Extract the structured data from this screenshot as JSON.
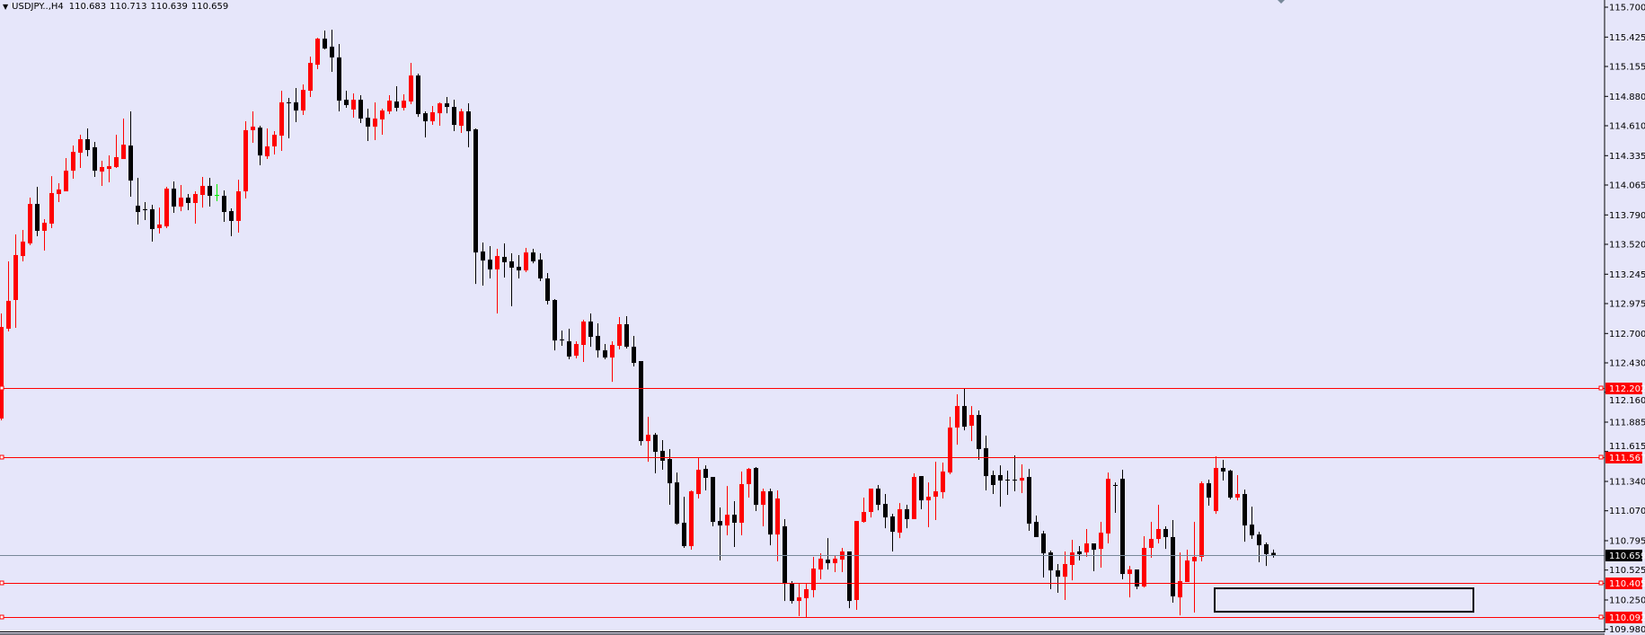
{
  "header": {
    "symbol": "USDJPY..,H4",
    "open": "110.683",
    "high": "110.713",
    "low": "110.639",
    "close": "110.659"
  },
  "colors": {
    "background": "#e6e6fa",
    "bull_candle": "#ff0000",
    "bear_candle": "#000000",
    "doji_special": "#00ee00",
    "level_line": "#ff0000",
    "current_price_line": "#778899",
    "axis": "#000000"
  },
  "chart_data": {
    "type": "candlestick",
    "symbol": "USDJPY",
    "timeframe": "H4",
    "ylim": [
      109.98,
      115.7
    ],
    "grid": false,
    "y_ticks": [
      "115.700",
      "115.425",
      "115.155",
      "114.880",
      "114.610",
      "114.335",
      "114.065",
      "113.790",
      "113.520",
      "113.245",
      "112.975",
      "112.700",
      "112.430",
      "112.160",
      "111.885",
      "111.615",
      "111.340",
      "111.070",
      "110.795",
      "110.525",
      "110.250",
      "109.980"
    ],
    "horizontal_levels": [
      {
        "price": "112.202"
      },
      {
        "price": "111.567"
      },
      {
        "price": "110.405"
      },
      {
        "price": "110.092"
      }
    ],
    "current_price": "110.659",
    "rectangle": {
      "price_top": 110.357,
      "price_bottom": 110.142
    },
    "candle_fields": [
      "open",
      "high",
      "low",
      "close"
    ],
    "candles": [
      [
        111.918,
        112.884,
        111.901,
        112.76
      ],
      [
        112.744,
        113.363,
        112.719,
        113.0
      ],
      [
        113.008,
        113.611,
        112.752,
        113.421
      ],
      [
        113.412,
        113.652,
        113.363,
        113.545
      ],
      [
        113.528,
        113.949,
        113.512,
        113.891
      ],
      [
        113.891,
        114.048,
        113.594,
        113.644
      ],
      [
        113.644,
        113.751,
        113.462,
        113.718
      ],
      [
        113.71,
        114.147,
        113.669,
        113.991
      ],
      [
        113.982,
        114.081,
        113.908,
        114.024
      ],
      [
        114.007,
        114.313,
        114.007,
        114.197
      ],
      [
        114.197,
        114.428,
        114.123,
        114.37
      ],
      [
        114.362,
        114.527,
        114.222,
        114.486
      ],
      [
        114.486,
        114.585,
        114.329,
        114.387
      ],
      [
        114.412,
        114.461,
        114.139,
        114.197
      ],
      [
        114.189,
        114.288,
        114.057,
        114.23
      ],
      [
        114.213,
        114.337,
        114.09,
        114.238
      ],
      [
        114.23,
        114.527,
        114.222,
        114.321
      ],
      [
        114.304,
        114.676,
        114.304,
        114.436
      ],
      [
        114.428,
        114.742,
        113.958,
        114.106
      ],
      [
        113.875,
        114.131,
        113.702,
        113.817
      ],
      [
        113.842,
        113.908,
        113.743,
        113.842
      ],
      [
        113.842,
        113.883,
        113.545,
        113.66
      ],
      [
        113.669,
        113.858,
        113.619,
        113.702
      ],
      [
        113.685,
        114.048,
        113.669,
        114.032
      ],
      [
        114.032,
        114.098,
        113.809,
        113.867
      ],
      [
        113.867,
        114.065,
        113.825,
        113.949
      ],
      [
        113.949,
        113.982,
        113.834,
        113.9
      ],
      [
        113.9,
        114.007,
        113.71,
        113.982
      ],
      [
        113.974,
        114.139,
        113.858,
        114.057
      ],
      [
        114.057,
        114.131,
        113.867,
        113.966
      ],
      [
        113.974,
        114.073,
        113.916,
        113.974
      ],
      [
        113.966,
        114.015,
        113.726,
        113.817
      ],
      [
        113.825,
        113.85,
        113.594,
        113.735
      ],
      [
        113.735,
        114.114,
        113.627,
        114.007
      ],
      [
        114.007,
        114.651,
        113.941,
        114.569
      ],
      [
        114.569,
        114.742,
        114.453,
        114.602
      ],
      [
        114.593,
        114.61,
        114.247,
        114.337
      ],
      [
        114.329,
        114.585,
        114.304,
        114.42
      ],
      [
        114.42,
        114.56,
        114.346,
        114.527
      ],
      [
        114.519,
        114.932,
        114.379,
        114.825
      ],
      [
        114.825,
        114.866,
        114.494,
        114.825
      ],
      [
        114.825,
        114.957,
        114.643,
        114.75
      ],
      [
        114.75,
        114.99,
        114.709,
        114.94
      ],
      [
        114.932,
        115.246,
        114.874,
        115.188
      ],
      [
        115.171,
        115.419,
        115.13,
        115.411
      ],
      [
        115.411,
        115.485,
        115.312,
        115.32
      ],
      [
        115.337,
        115.493,
        115.105,
        115.238
      ],
      [
        115.238,
        115.361,
        114.742,
        114.841
      ],
      [
        114.849,
        114.932,
        114.775,
        114.8
      ],
      [
        114.759,
        114.907,
        114.684,
        114.849
      ],
      [
        114.849,
        114.891,
        114.635,
        114.676
      ],
      [
        114.684,
        114.767,
        114.47,
        114.602
      ],
      [
        114.602,
        114.825,
        114.478,
        114.676
      ],
      [
        114.668,
        114.767,
        114.527,
        114.75
      ],
      [
        114.742,
        114.891,
        114.717,
        114.841
      ],
      [
        114.833,
        114.973,
        114.742,
        114.775
      ],
      [
        114.775,
        114.899,
        114.75,
        114.841
      ],
      [
        114.833,
        115.188,
        114.808,
        115.072
      ],
      [
        115.072,
        115.089,
        114.692,
        114.717
      ],
      [
        114.725,
        114.742,
        114.503,
        114.651
      ],
      [
        114.651,
        114.792,
        114.618,
        114.734
      ],
      [
        114.725,
        114.825,
        114.61,
        114.816
      ],
      [
        114.816,
        114.874,
        114.725,
        114.783
      ],
      [
        114.783,
        114.849,
        114.56,
        114.618
      ],
      [
        114.61,
        114.767,
        114.544,
        114.742
      ],
      [
        114.742,
        114.816,
        114.412,
        114.56
      ],
      [
        114.577,
        114.585,
        113.156,
        113.445
      ],
      [
        113.454,
        113.536,
        113.14,
        113.371
      ],
      [
        113.379,
        113.503,
        113.206,
        113.289
      ],
      [
        113.289,
        113.479,
        112.884,
        113.412
      ],
      [
        113.404,
        113.528,
        113.214,
        113.355
      ],
      [
        113.363,
        113.437,
        112.95,
        113.305
      ],
      [
        113.313,
        113.421,
        113.206,
        113.28
      ],
      [
        113.28,
        113.487,
        113.264,
        113.445
      ],
      [
        113.445,
        113.479,
        113.346,
        113.363
      ],
      [
        113.379,
        113.437,
        113.181,
        113.206
      ],
      [
        113.206,
        113.256,
        112.967,
        113.0
      ],
      [
        113.008,
        113.016,
        112.545,
        112.636
      ],
      [
        112.645,
        112.727,
        112.587,
        112.645
      ],
      [
        112.628,
        112.744,
        112.463,
        112.488
      ],
      [
        112.496,
        112.628,
        112.471,
        112.603
      ],
      [
        112.595,
        112.826,
        112.438,
        112.81
      ],
      [
        112.81,
        112.884,
        112.578,
        112.669
      ],
      [
        112.678,
        112.793,
        112.479,
        112.545
      ],
      [
        112.545,
        112.603,
        112.463,
        112.479
      ],
      [
        112.479,
        112.628,
        112.256,
        112.595
      ],
      [
        112.587,
        112.851,
        112.554,
        112.785
      ],
      [
        112.785,
        112.859,
        112.562,
        112.578
      ],
      [
        112.578,
        112.678,
        112.397,
        112.43
      ],
      [
        112.446,
        112.446,
        111.67,
        111.711
      ],
      [
        111.711,
        111.934,
        111.521,
        111.769
      ],
      [
        111.769,
        111.786,
        111.414,
        111.612
      ],
      [
        111.621,
        111.72,
        111.447,
        111.53
      ],
      [
        111.546,
        111.637,
        111.125,
        111.323
      ],
      [
        111.331,
        111.422,
        110.943,
        110.952
      ],
      [
        110.96,
        111.199,
        110.729,
        110.745
      ],
      [
        110.745,
        111.257,
        110.712,
        111.249
      ],
      [
        111.224,
        111.563,
        111.183,
        111.447
      ],
      [
        111.455,
        111.488,
        111.257,
        111.373
      ],
      [
        111.381,
        111.381,
        110.927,
        110.968
      ],
      [
        110.976,
        111.1,
        110.613,
        110.935
      ],
      [
        110.935,
        111.298,
        110.844,
        111.034
      ],
      [
        111.034,
        111.158,
        110.737,
        110.96
      ],
      [
        110.96,
        111.431,
        110.844,
        111.315
      ],
      [
        111.315,
        111.464,
        111.191,
        111.455
      ],
      [
        111.464,
        111.472,
        111.067,
        111.125
      ],
      [
        111.125,
        111.274,
        110.927,
        111.249
      ],
      [
        111.249,
        111.274,
        110.753,
        110.852
      ],
      [
        110.852,
        111.257,
        110.605,
        111.183
      ],
      [
        110.927,
        110.993,
        110.241,
        110.398
      ],
      [
        110.407,
        110.423,
        110.217,
        110.241
      ],
      [
        110.241,
        110.398,
        110.101,
        110.274
      ],
      [
        110.266,
        110.398,
        110.093,
        110.349
      ],
      [
        110.341,
        110.646,
        110.274,
        110.539
      ],
      [
        110.53,
        110.679,
        110.44,
        110.63
      ],
      [
        110.621,
        110.819,
        110.53,
        110.588
      ],
      [
        110.588,
        110.663,
        110.506,
        110.63
      ],
      [
        110.621,
        110.729,
        110.506,
        110.696
      ],
      [
        110.696,
        110.696,
        110.175,
        110.241
      ],
      [
        110.25,
        110.976,
        110.159,
        110.976
      ],
      [
        110.968,
        111.191,
        110.96,
        111.059
      ],
      [
        111.059,
        111.274,
        111.009,
        111.274
      ],
      [
        111.274,
        111.307,
        111.075,
        111.125
      ],
      [
        111.133,
        111.224,
        110.91,
        111.009
      ],
      [
        111.018,
        111.042,
        110.696,
        110.877
      ],
      [
        110.869,
        111.141,
        110.819,
        111.084
      ],
      [
        111.084,
        111.125,
        110.91,
        110.993
      ],
      [
        110.993,
        111.414,
        110.993,
        111.381
      ],
      [
        111.389,
        111.389,
        111.084,
        111.166
      ],
      [
        111.166,
        111.331,
        110.919,
        111.199
      ],
      [
        111.199,
        111.521,
        110.985,
        111.249
      ],
      [
        111.241,
        111.513,
        111.183,
        111.431
      ],
      [
        111.422,
        111.934,
        111.406,
        111.835
      ],
      [
        111.835,
        112.141,
        111.678,
        112.033
      ],
      [
        112.033,
        112.19,
        111.81,
        111.843
      ],
      [
        111.852,
        112.033,
        111.711,
        111.951
      ],
      [
        111.951,
        111.992,
        111.538,
        111.637
      ],
      [
        111.645,
        111.761,
        111.257,
        111.389
      ],
      [
        111.398,
        111.439,
        111.224,
        111.307
      ],
      [
        111.398,
        111.488,
        111.108,
        111.348
      ],
      [
        111.356,
        111.439,
        111.216,
        111.356
      ],
      [
        111.356,
        111.579,
        111.249,
        111.356
      ],
      [
        111.348,
        111.497,
        111.233,
        111.373
      ],
      [
        111.381,
        111.455,
        110.886,
        110.952
      ],
      [
        110.968,
        111.026,
        110.828,
        110.828
      ],
      [
        110.861,
        110.886,
        110.456,
        110.679
      ],
      [
        110.687,
        110.704,
        110.349,
        110.522
      ],
      [
        110.522,
        110.58,
        110.316,
        110.464
      ],
      [
        110.464,
        110.696,
        110.25,
        110.58
      ],
      [
        110.572,
        110.803,
        110.431,
        110.687
      ],
      [
        110.696,
        110.745,
        110.613,
        110.671
      ],
      [
        110.687,
        110.902,
        110.646,
        110.77
      ],
      [
        110.77,
        110.77,
        110.514,
        110.712
      ],
      [
        110.72,
        110.968,
        110.547,
        110.869
      ],
      [
        110.861,
        111.422,
        110.77,
        111.364
      ],
      [
        111.307,
        111.331,
        111.051,
        111.307
      ],
      [
        111.364,
        111.447,
        110.44,
        110.489
      ],
      [
        110.489,
        110.563,
        110.274,
        110.53
      ],
      [
        110.53,
        110.53,
        110.349,
        110.374
      ],
      [
        110.374,
        110.836,
        110.365,
        110.729
      ],
      [
        110.729,
        110.968,
        110.638,
        110.811
      ],
      [
        110.811,
        111.125,
        110.77,
        110.902
      ],
      [
        110.902,
        110.927,
        110.72,
        110.828
      ],
      [
        110.828,
        110.985,
        110.225,
        110.283
      ],
      [
        110.274,
        110.687,
        110.109,
        110.423
      ],
      [
        110.415,
        110.712,
        110.415,
        110.613
      ],
      [
        110.605,
        110.968,
        110.134,
        110.646
      ],
      [
        110.646,
        111.34,
        110.605,
        111.323
      ],
      [
        111.323,
        111.356,
        111.117,
        111.191
      ],
      [
        111.067,
        111.571,
        111.042,
        111.464
      ],
      [
        111.464,
        111.538,
        111.348,
        111.431
      ],
      [
        111.439,
        111.447,
        111.175,
        111.191
      ],
      [
        111.191,
        111.398,
        111.166,
        111.224
      ],
      [
        111.224,
        111.265,
        110.786,
        110.935
      ],
      [
        110.943,
        111.108,
        110.811,
        110.844
      ],
      [
        110.852,
        110.877,
        110.597,
        110.753
      ],
      [
        110.762,
        110.778,
        110.563,
        110.671
      ],
      [
        110.683,
        110.713,
        110.639,
        110.659
      ]
    ]
  }
}
